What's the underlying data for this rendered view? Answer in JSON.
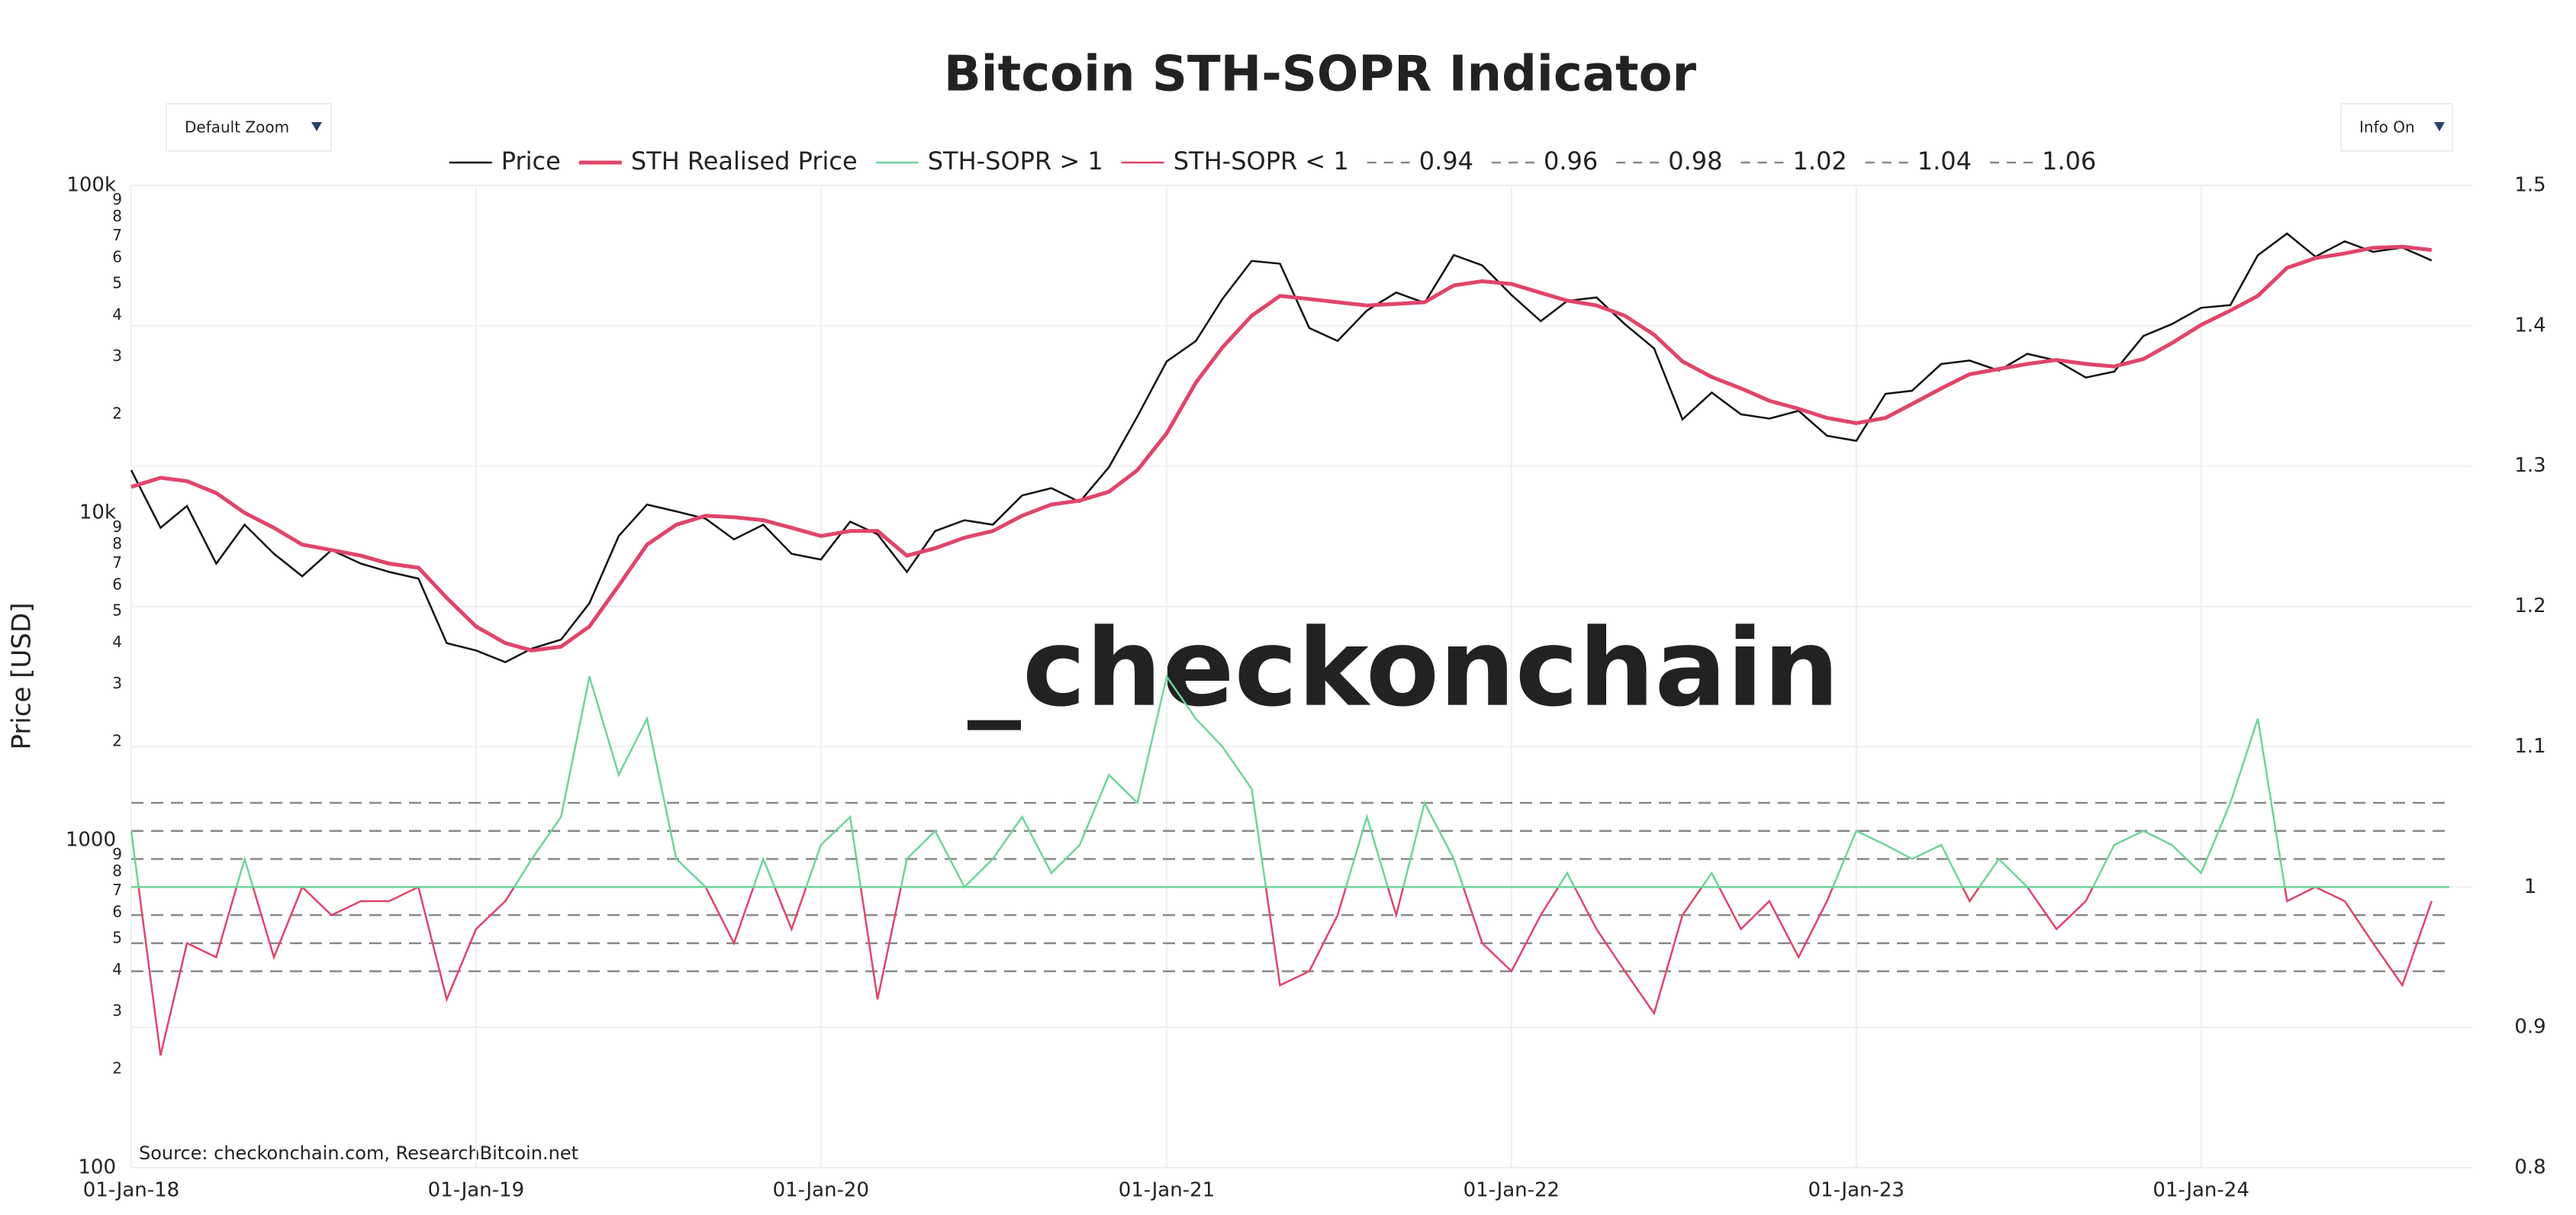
{
  "chart_data": {
    "type": "line",
    "title": "Bitcoin STH-SOPR Indicator",
    "ylabel": "Price [USD]",
    "source": "Source: checkonchain.com, ResearchBitcoin.net",
    "watermark": {
      "prefix": "_",
      "text": "checkonchain"
    },
    "controls": {
      "zoom": "Default Zoom",
      "info": "Info On"
    },
    "legend": "top",
    "grid": true,
    "ylog": true,
    "threshold": 1,
    "x": [
      "2018-01-01",
      "2018-02-01",
      "2018-03-01",
      "2018-04-01",
      "2018-05-01",
      "2018-06-01",
      "2018-07-01",
      "2018-08-01",
      "2018-09-01",
      "2018-10-01",
      "2018-11-01",
      "2018-12-01",
      "2019-01-01",
      "2019-02-01",
      "2019-03-01",
      "2019-04-01",
      "2019-05-01",
      "2019-06-01",
      "2019-07-01",
      "2019-08-01",
      "2019-09-01",
      "2019-10-01",
      "2019-11-01",
      "2019-12-01",
      "2020-01-01",
      "2020-02-01",
      "2020-03-01",
      "2020-04-01",
      "2020-05-01",
      "2020-06-01",
      "2020-07-01",
      "2020-08-01",
      "2020-09-01",
      "2020-10-01",
      "2020-11-01",
      "2020-12-01",
      "2021-01-01",
      "2021-02-01",
      "2021-03-01",
      "2021-04-01",
      "2021-05-01",
      "2021-06-01",
      "2021-07-01",
      "2021-08-01",
      "2021-09-01",
      "2021-10-01",
      "2021-11-01",
      "2021-12-01",
      "2022-01-01",
      "2022-02-01",
      "2022-03-01",
      "2022-04-01",
      "2022-05-01",
      "2022-06-01",
      "2022-07-01",
      "2022-08-01",
      "2022-09-01",
      "2022-10-01",
      "2022-11-01",
      "2022-12-01",
      "2023-01-01",
      "2023-02-01",
      "2023-03-01",
      "2023-04-01",
      "2023-05-01",
      "2023-06-01",
      "2023-07-01",
      "2023-08-01",
      "2023-09-01",
      "2023-10-01",
      "2023-11-01",
      "2023-12-01",
      "2024-01-01",
      "2024-02-01",
      "2024-03-01",
      "2024-04-01",
      "2024-05-01",
      "2024-06-01",
      "2024-07-01",
      "2024-08-01",
      "2024-09-01"
    ],
    "series": [
      {
        "name": "Price",
        "color": "#111111",
        "axis": "y",
        "values": [
          13500,
          9000,
          10500,
          7000,
          9200,
          7500,
          6400,
          7700,
          7000,
          6600,
          6300,
          4000,
          3800,
          3500,
          3850,
          4100,
          5300,
          8500,
          10600,
          10100,
          9600,
          8300,
          9200,
          7500,
          7200,
          9400,
          8600,
          6600,
          8800,
          9500,
          9200,
          11300,
          11900,
          10800,
          13800,
          19700,
          29000,
          33500,
          45000,
          58800,
          57700,
          36700,
          33500,
          41500,
          47100,
          43800,
          61300,
          57000,
          46300,
          38500,
          44400,
          45500,
          37700,
          31800,
          19300,
          23300,
          20000,
          19400,
          20500,
          17200,
          16600,
          23100,
          23600,
          28500,
          29200,
          27200,
          30600,
          29200,
          25900,
          27000,
          34700,
          37700,
          42300,
          43100,
          61200,
          71300,
          60600,
          67500,
          62700,
          64600,
          59000
        ]
      },
      {
        "name": "STH Realised Price",
        "color": "#e0456a",
        "axis": "y",
        "values": [
          12000,
          12800,
          12500,
          11500,
          10000,
          9000,
          8000,
          7700,
          7400,
          7000,
          6800,
          5500,
          4500,
          4000,
          3800,
          3900,
          4500,
          6000,
          8000,
          9200,
          9800,
          9700,
          9500,
          9000,
          8500,
          8800,
          8800,
          7400,
          7800,
          8400,
          8800,
          9800,
          10600,
          10900,
          11600,
          13500,
          17500,
          25000,
          32000,
          40000,
          46000,
          45000,
          44000,
          43000,
          43500,
          44000,
          49500,
          51000,
          50000,
          47000,
          44500,
          43000,
          40000,
          35000,
          29000,
          26000,
          24000,
          22000,
          20800,
          19500,
          18800,
          19500,
          21500,
          24000,
          26500,
          27500,
          28500,
          29300,
          28500,
          28000,
          29500,
          33000,
          37500,
          41500,
          46000,
          56000,
          60000,
          62000,
          64500,
          65000,
          63500
        ]
      },
      {
        "name": "STH-SOPR > 1",
        "color": "#6fd49a",
        "axis": "y2",
        "values": [
          1.04,
          0.88,
          0.96,
          0.95,
          1.02,
          0.95,
          1.0,
          0.98,
          0.99,
          0.99,
          1.0,
          0.92,
          0.97,
          0.99,
          1.02,
          1.05,
          1.15,
          1.08,
          1.12,
          1.02,
          1.0,
          0.96,
          1.02,
          0.97,
          1.03,
          1.05,
          0.92,
          1.02,
          1.04,
          1.0,
          1.02,
          1.05,
          1.01,
          1.03,
          1.08,
          1.06,
          1.15,
          1.12,
          1.1,
          1.07,
          0.93,
          0.94,
          0.98,
          1.05,
          0.98,
          1.06,
          1.02,
          0.96,
          0.94,
          0.98,
          1.01,
          0.97,
          0.94,
          0.91,
          0.98,
          1.01,
          0.97,
          0.99,
          0.95,
          0.99,
          1.04,
          1.03,
          1.02,
          1.03,
          0.99,
          1.02,
          1.0,
          0.97,
          0.99,
          1.03,
          1.04,
          1.03,
          1.01,
          1.06,
          1.12,
          0.99,
          1.0,
          0.99,
          0.96,
          0.93,
          0.99
        ]
      },
      {
        "name": "STH-SOPR < 1",
        "color": "#e0456a",
        "axis": "y2"
      }
    ],
    "ref_lines": [
      {
        "name": "0.94",
        "value": 0.94
      },
      {
        "name": "0.96",
        "value": 0.96
      },
      {
        "name": "0.98",
        "value": 0.98
      },
      {
        "name": "1.02",
        "value": 1.02
      },
      {
        "name": "1.04",
        "value": 1.04
      },
      {
        "name": "1.06",
        "value": 1.06
      }
    ],
    "ref_color": "#888888",
    "xlim": [
      "2018-01-01",
      "2024-10-14"
    ],
    "xticks": [
      {
        "value": "2018-01-01",
        "label": "01-Jan-18"
      },
      {
        "value": "2019-01-01",
        "label": "01-Jan-19"
      },
      {
        "value": "2020-01-01",
        "label": "01-Jan-20"
      },
      {
        "value": "2021-01-01",
        "label": "01-Jan-21"
      },
      {
        "value": "2022-01-01",
        "label": "01-Jan-22"
      },
      {
        "value": "2023-01-01",
        "label": "01-Jan-23"
      },
      {
        "value": "2024-01-01",
        "label": "01-Jan-24"
      }
    ],
    "ylim": [
      100,
      100000
    ],
    "yticks": [
      100,
      {
        "value": 200,
        "label": "2"
      },
      {
        "value": 300,
        "label": "3"
      },
      {
        "value": 400,
        "label": "4"
      },
      {
        "value": 500,
        "label": "5"
      },
      {
        "value": 600,
        "label": "6"
      },
      {
        "value": 700,
        "label": "7"
      },
      {
        "value": 800,
        "label": "8"
      },
      {
        "value": 900,
        "label": "9"
      },
      1000,
      {
        "value": 2000,
        "label": "2"
      },
      {
        "value": 3000,
        "label": "3"
      },
      {
        "value": 4000,
        "label": "4"
      },
      {
        "value": 5000,
        "label": "5"
      },
      {
        "value": 6000,
        "label": "6"
      },
      {
        "value": 7000,
        "label": "7"
      },
      {
        "value": 8000,
        "label": "8"
      },
      {
        "value": 9000,
        "label": "9"
      },
      {
        "value": 10000,
        "label": "10k"
      },
      {
        "value": 20000,
        "label": "2"
      },
      {
        "value": 30000,
        "label": "3"
      },
      {
        "value": 40000,
        "label": "4"
      },
      {
        "value": 50000,
        "label": "5"
      },
      {
        "value": 60000,
        "label": "6"
      },
      {
        "value": 70000,
        "label": "7"
      },
      {
        "value": 80000,
        "label": "8"
      },
      {
        "value": 90000,
        "label": "9"
      },
      {
        "value": 100000,
        "label": "100k"
      }
    ],
    "y2lim": [
      0.8,
      1.5
    ],
    "y2ticks": [
      0.8,
      0.9,
      1,
      1.1,
      1.2,
      1.3,
      1.4,
      1.5
    ]
  }
}
